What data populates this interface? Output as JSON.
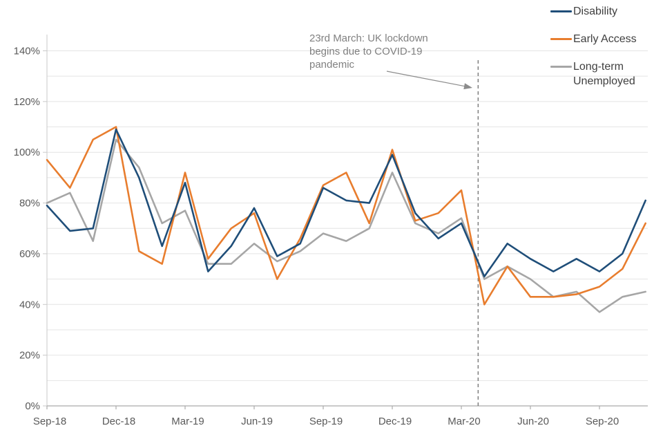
{
  "chart_data": {
    "type": "line",
    "x": [
      "Sep-18",
      "Oct-18",
      "Nov-18",
      "Dec-18",
      "Jan-19",
      "Feb-19",
      "Mar-19",
      "Apr-19",
      "May-19",
      "Jun-19",
      "Jul-19",
      "Aug-19",
      "Sep-19",
      "Oct-19",
      "Nov-19",
      "Dec-19",
      "Jan-20",
      "Feb-20",
      "Mar-20",
      "Apr-20",
      "May-20",
      "Jun-20",
      "Jul-20",
      "Aug-20",
      "Sep-20",
      "Oct-20",
      "Nov-20"
    ],
    "series": [
      {
        "name": "Disability",
        "color": "#1F4E79",
        "values": [
          79,
          69,
          70,
          109,
          90,
          63,
          88,
          53,
          63,
          78,
          59,
          64,
          86,
          81,
          80,
          99,
          76,
          66,
          72,
          51,
          64,
          58,
          53,
          58,
          53,
          60,
          81
        ]
      },
      {
        "name": "Early Access",
        "color": "#E87D2E",
        "values": [
          97,
          86,
          105,
          110,
          61,
          56,
          92,
          58,
          70,
          76,
          50,
          66,
          87,
          92,
          72,
          101,
          73,
          76,
          85,
          40,
          55,
          43,
          43,
          44,
          47,
          54,
          72
        ]
      },
      {
        "name": "Long-term Unemployed",
        "color": "#A6A6A6",
        "values": [
          80,
          84,
          65,
          105,
          94,
          72,
          77,
          56,
          56,
          64,
          57,
          61,
          68,
          65,
          70,
          92,
          72,
          68,
          74,
          50,
          55,
          50,
          43,
          45,
          37,
          43,
          45
        ]
      }
    ],
    "ylim": [
      0,
      140
    ],
    "y_grid_step": 10,
    "y_tick_label_step": 20,
    "y_tick_labels": [
      "0%",
      "20%",
      "40%",
      "60%",
      "80%",
      "100%",
      "120%",
      "140%"
    ],
    "x_tick_every": 3,
    "x_tick_labels": [
      "Sep-18",
      "Dec-18",
      "Mar-19",
      "Jun-19",
      "Sep-19",
      "Dec-19",
      "Mar-20",
      "Jun-20",
      "Sep-20"
    ],
    "grid": true,
    "legend_position": "top-right",
    "annotation": {
      "lines": [
        "23rd March: UK lockdown",
        "begins due to COVID-19",
        "pandemic"
      ],
      "target_month_index": 18.73
    },
    "colors": {
      "gridline": "#E4E4E4",
      "y_axis_line": "#C9C9C9",
      "x_axis_line": "#ABABAB",
      "tick_label": "#595959",
      "dashed_line": "#7F7F7F",
      "arrow": "#8C8C8C",
      "annotation_text": "#808080"
    }
  }
}
